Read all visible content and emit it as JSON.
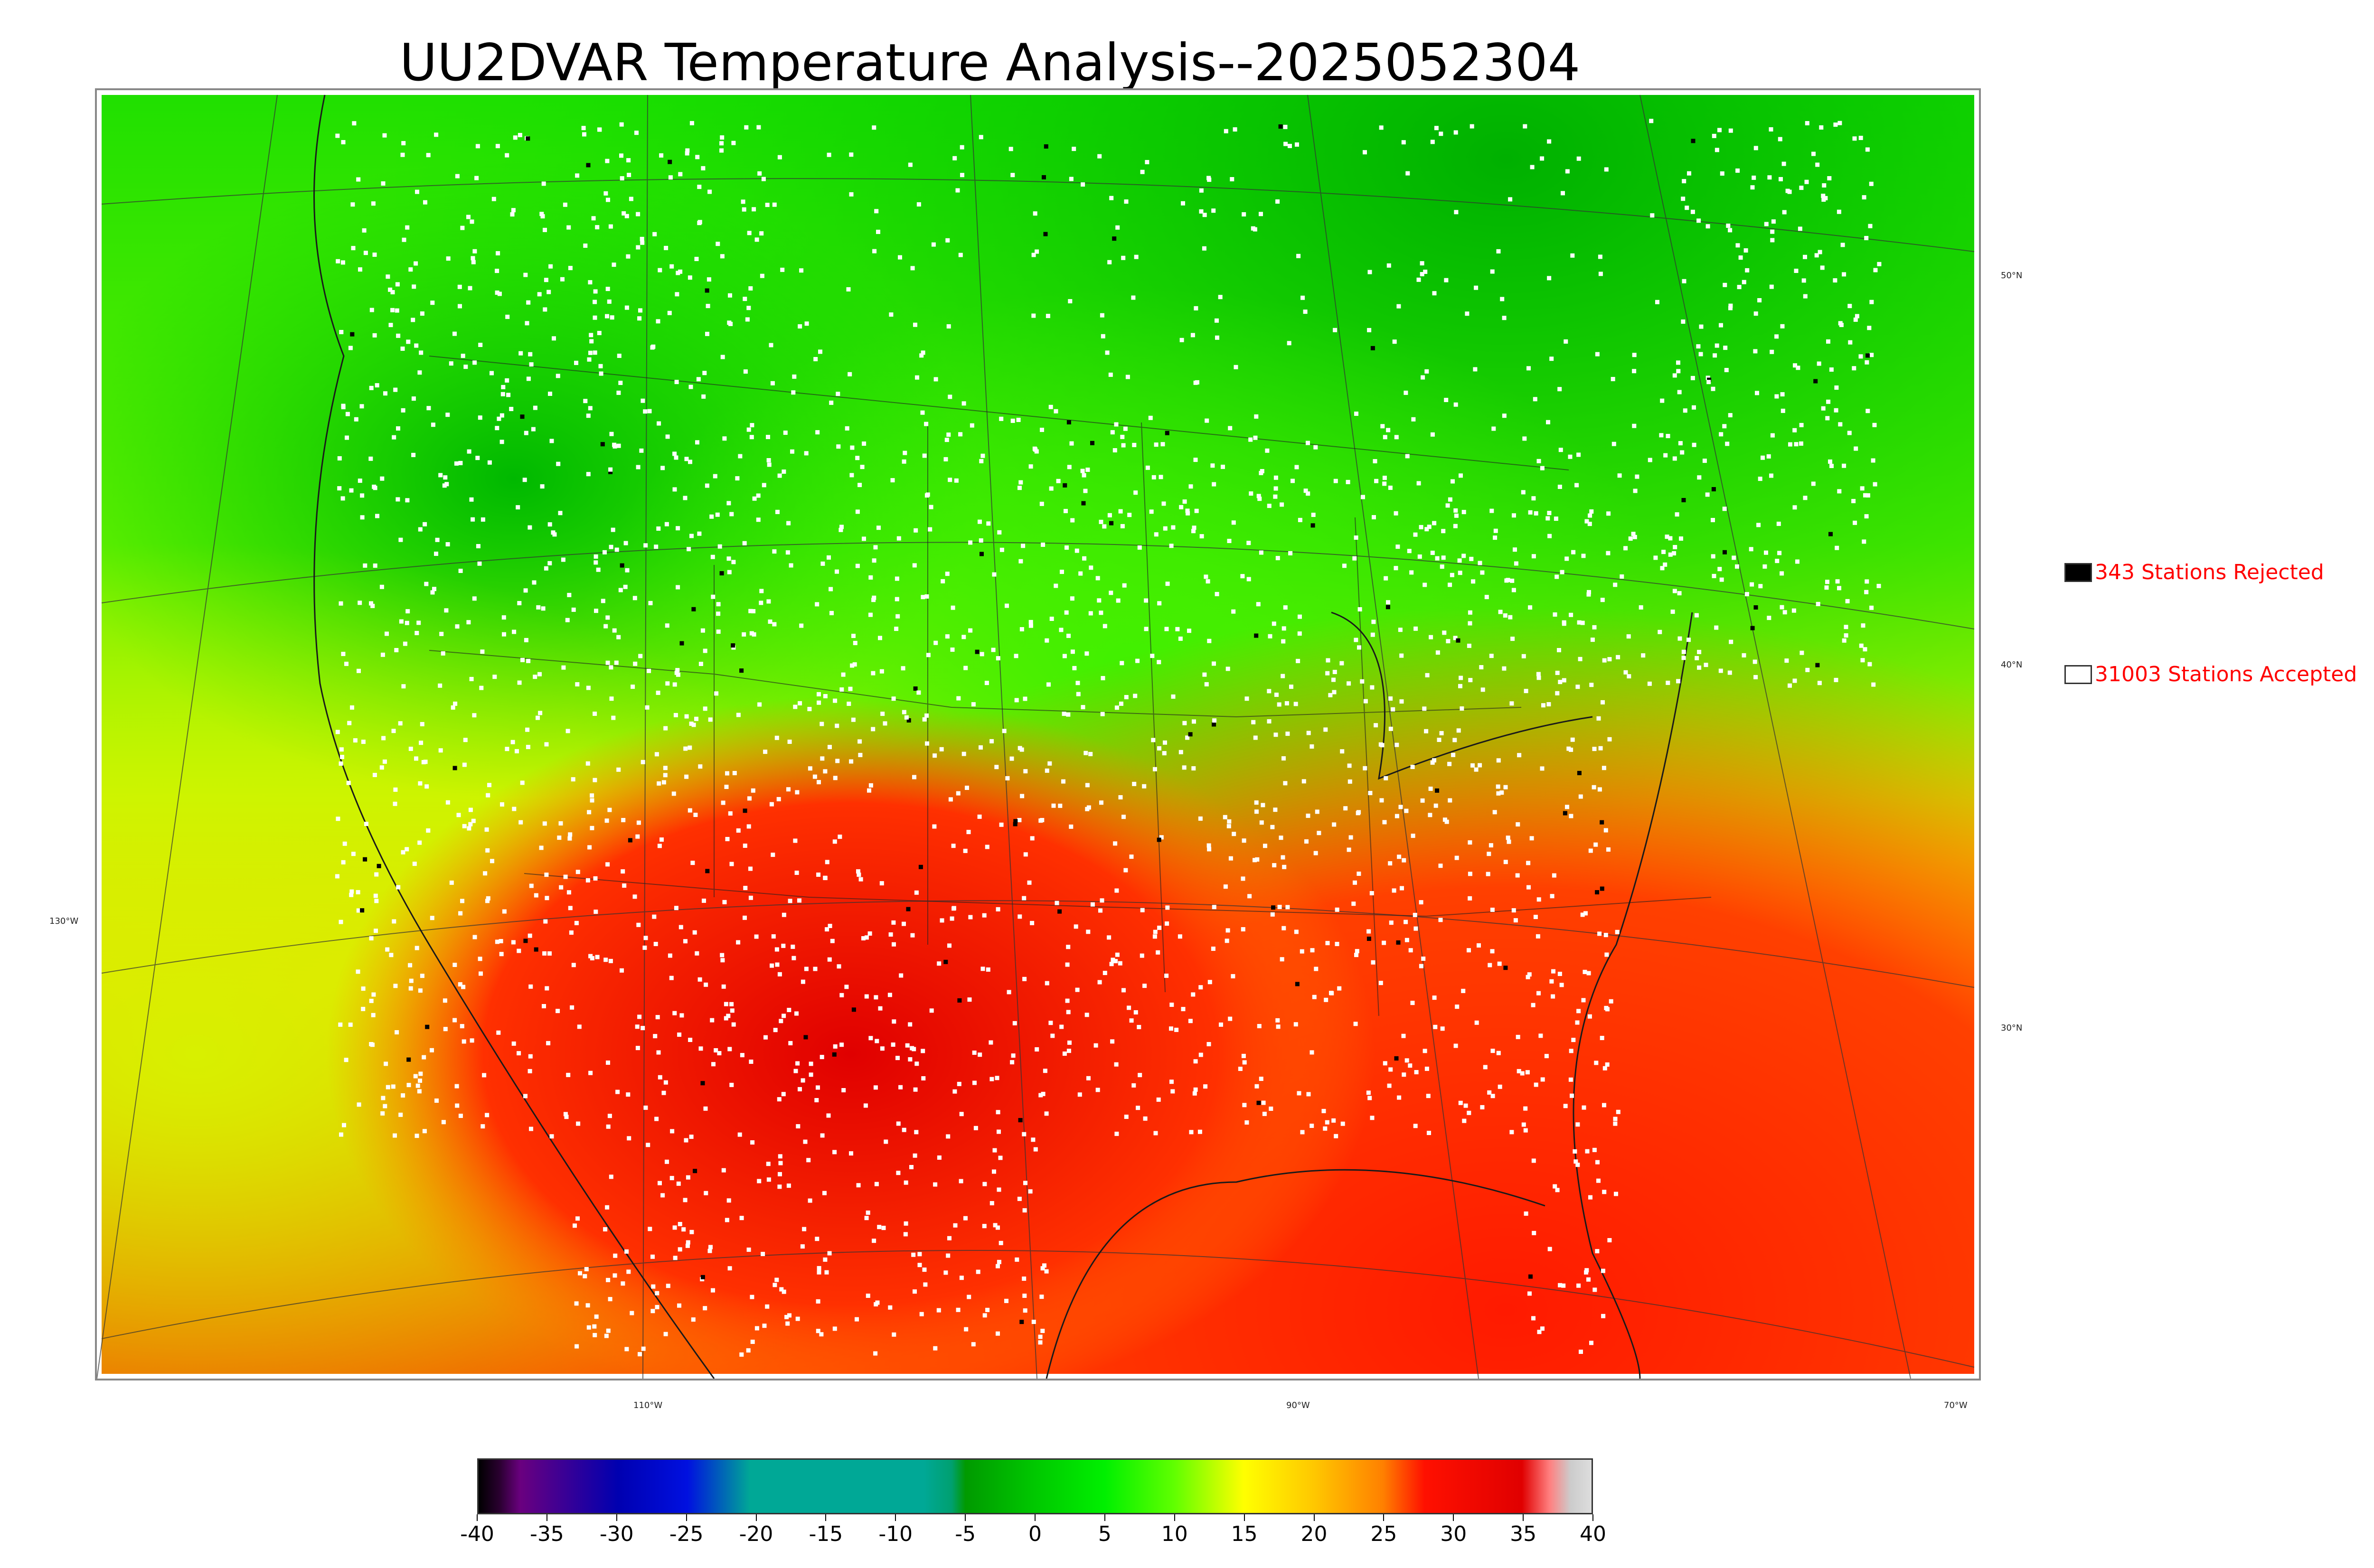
{
  "title": "UU2DVAR Temperature Analysis--2025052304",
  "map": {
    "lat_labels": [
      "50°N",
      "40°N",
      "30°N"
    ],
    "lon_labels": [
      "130°W",
      "110°W",
      "90°W",
      "70°W"
    ]
  },
  "legend": {
    "rejected": {
      "label": "343 Stations Rejected",
      "color": "#000000"
    },
    "accepted": {
      "label": "31003 Stations Accepted",
      "color": "#ffffff"
    }
  },
  "colorbar": {
    "ticks": [
      "-40",
      "-35",
      "-30",
      "-25",
      "-20",
      "-15",
      "-10",
      "-5",
      "0",
      "5",
      "10",
      "15",
      "20",
      "25",
      "30",
      "35",
      "40"
    ],
    "range": [
      -40,
      40
    ],
    "stops": [
      {
        "v": -40,
        "c": "#000000"
      },
      {
        "v": -38.5,
        "c": "#2a0030"
      },
      {
        "v": -37,
        "c": "#6a007f"
      },
      {
        "v": -30,
        "c": "#0000b0"
      },
      {
        "v": -25,
        "c": "#0010e0"
      },
      {
        "v": -20.5,
        "c": "#00a896"
      },
      {
        "v": -8,
        "c": "#00a896"
      },
      {
        "v": -6,
        "c": "#00a070"
      },
      {
        "v": -5,
        "c": "#009a00"
      },
      {
        "v": 0,
        "c": "#00c800"
      },
      {
        "v": 5,
        "c": "#00f000"
      },
      {
        "v": 10,
        "c": "#60ff00"
      },
      {
        "v": 15,
        "c": "#ffff00"
      },
      {
        "v": 20,
        "c": "#ffc800"
      },
      {
        "v": 25,
        "c": "#ff8000"
      },
      {
        "v": 28,
        "c": "#ff1000"
      },
      {
        "v": 35,
        "c": "#e00000"
      },
      {
        "v": 37,
        "c": "#ff8080"
      },
      {
        "v": 38.5,
        "c": "#cccccc"
      },
      {
        "v": 40,
        "c": "#dddddd"
      }
    ]
  }
}
